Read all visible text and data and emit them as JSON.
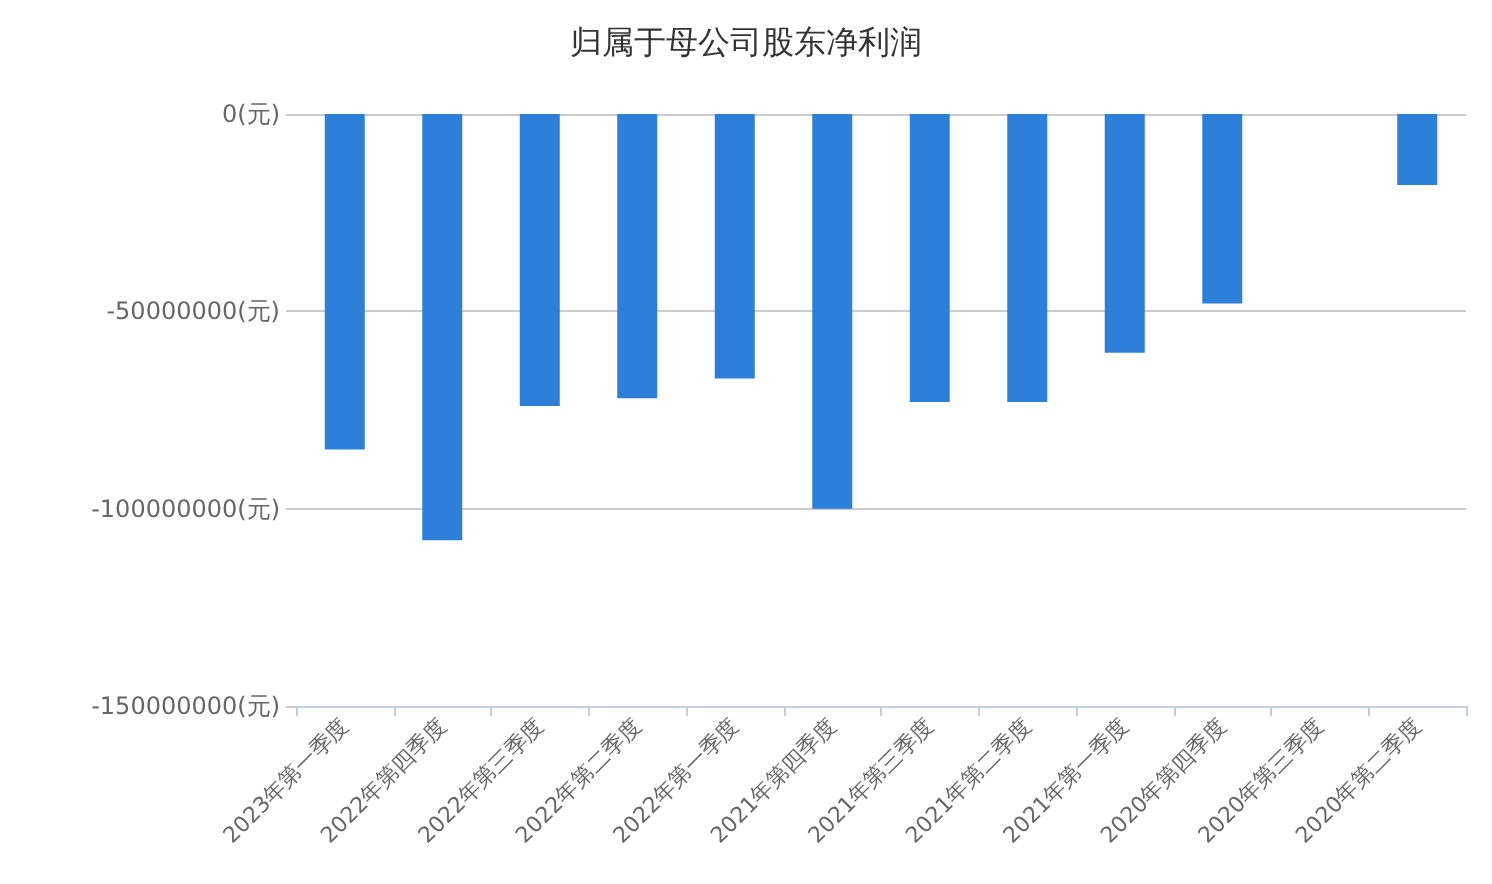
{
  "chart_data": {
    "type": "bar",
    "title": "归属于母公司股东净利润",
    "categories": [
      "2023年第一季度",
      "2022年第四季度",
      "2022年第三季度",
      "2022年第二季度",
      "2022年第一季度",
      "2021年第四季度",
      "2021年第三季度",
      "2021年第二季度",
      "2021年第一季度",
      "2020年第四季度",
      "2020年第三季度",
      "2020年第二季度"
    ],
    "values": [
      -85000000,
      -108000000,
      -74000000,
      -72000000,
      -67000000,
      -100000000,
      -73000000,
      -73000000,
      -60500000,
      -48000000,
      0,
      -18000000
    ],
    "color": "#2e7fd9",
    "ylim": [
      -150000000,
      0
    ],
    "yticks": [
      {
        "value": -150000000,
        "label": "-150000000(元)"
      },
      {
        "value": -100000000,
        "label": "-100000000(元)"
      },
      {
        "value": -50000000,
        "label": "-50000000(元)"
      },
      {
        "value": 0,
        "label": "0(元)"
      }
    ],
    "grid": "y"
  }
}
